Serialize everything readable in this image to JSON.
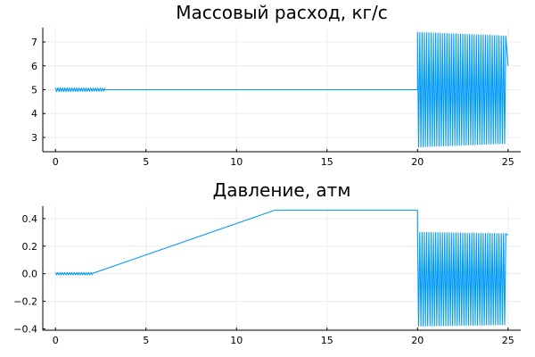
{
  "chart_data": [
    {
      "type": "line",
      "title": "Массовый расход, кг/с",
      "xlabel": "",
      "ylabel": "",
      "xlim": [
        -0.7,
        25.7
      ],
      "ylim": [
        2.4,
        7.6
      ],
      "xticks": [
        0,
        5,
        10,
        15,
        20,
        25
      ],
      "xtick_labels": [
        "0",
        "5",
        "10",
        "15",
        "20",
        "25"
      ],
      "yticks": [
        3,
        4,
        5,
        6,
        7
      ],
      "ytick_labels": [
        "3",
        "4",
        "5",
        "6",
        "7"
      ],
      "grid": true,
      "legend": "none",
      "series": [
        {
          "color": "#009af9",
          "segments": [
            {
              "kind": "osc",
              "x0": 0.0,
              "x1": 2.7,
              "center": 5.0,
              "amp_start": 0.08,
              "amp_end": 0.06,
              "period": 0.13
            },
            {
              "kind": "line",
              "points": [
                [
                  2.7,
                  5.0
                ],
                [
                  20.0,
                  5.0
                ]
              ]
            },
            {
              "kind": "osc",
              "x0": 20.0,
              "x1": 24.9,
              "center": 5.0,
              "amp_start": 2.4,
              "amp_end": 2.25,
              "period": 0.125
            }
          ],
          "end_value": [
            25.0,
            6.0
          ]
        }
      ]
    },
    {
      "type": "line",
      "title": "Давление, атм",
      "xlabel": "",
      "ylabel": "",
      "xlim": [
        -0.7,
        25.7
      ],
      "ylim": [
        -0.41,
        0.49
      ],
      "xticks": [
        0,
        5,
        10,
        15,
        20,
        25
      ],
      "xtick_labels": [
        "0",
        "5",
        "10",
        "15",
        "20",
        "25"
      ],
      "yticks": [
        -0.4,
        -0.2,
        0.0,
        0.2,
        0.4
      ],
      "ytick_labels": [
        "−0.4",
        "−0.2",
        "0.0",
        "0.2",
        "0.4"
      ],
      "grid": true,
      "legend": "none",
      "series": [
        {
          "color": "#009af9",
          "segments": [
            {
              "kind": "osc",
              "x0": 0.0,
              "x1": 2.0,
              "center": 0.0,
              "amp_start": 0.008,
              "amp_end": 0.008,
              "period": 0.13
            },
            {
              "kind": "line",
              "points": [
                [
                  2.0,
                  0.0
                ],
                [
                  12.1,
                  0.46
                ],
                [
                  20.0,
                  0.46
                ]
              ]
            },
            {
              "kind": "osc",
              "x0": 20.0,
              "x1": 24.9,
              "center": -0.04,
              "amp_start": 0.34,
              "amp_end": 0.33,
              "period": 0.125
            }
          ],
          "end_value": [
            25.0,
            0.28
          ]
        }
      ]
    }
  ]
}
